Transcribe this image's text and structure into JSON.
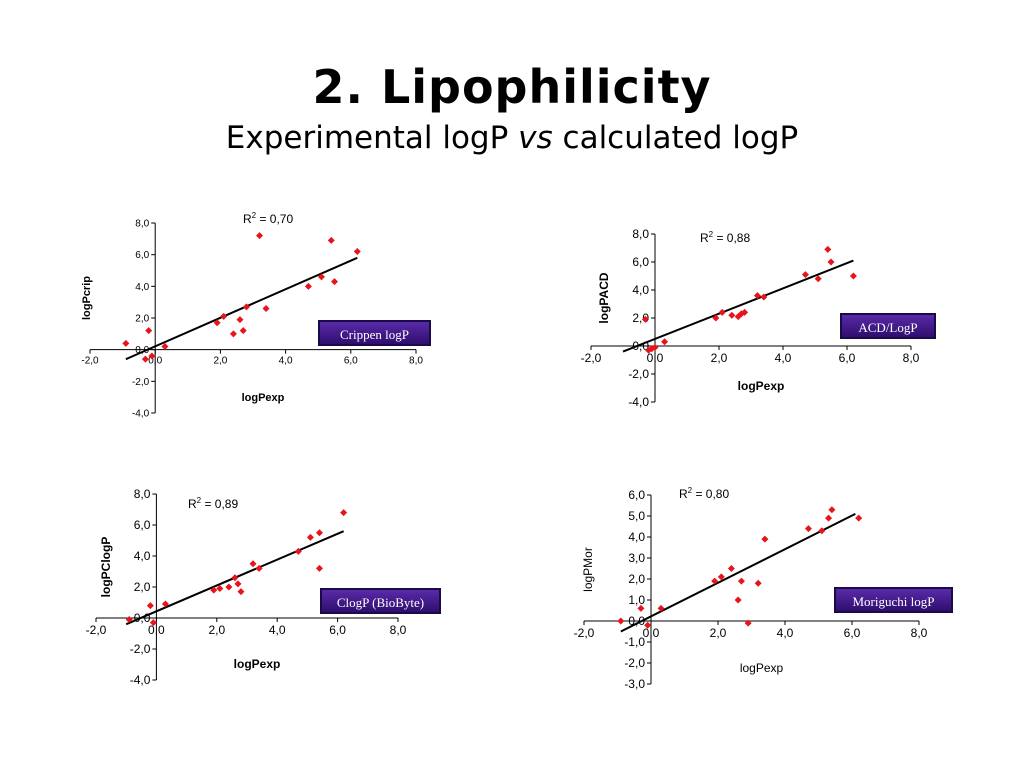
{
  "slide": {
    "title": "2. Lipophilicity",
    "subtitle_pre": "Experimental logP ",
    "subtitle_vs": "vs",
    "subtitle_post": " calculated logP"
  },
  "chart_data": [
    {
      "type": "scatter",
      "xlabel": "logPexp",
      "ylabel": "logPcrip",
      "xlim": [
        -2,
        8
      ],
      "ylim": [
        -4,
        8
      ],
      "xticks": [
        "-2,0",
        "0,0",
        "2,0",
        "4,0",
        "6,0",
        "8,0"
      ],
      "yticks": [
        "-4,0",
        "-2,0",
        "0,0",
        "2,0",
        "4,0",
        "6,0",
        "8,0"
      ],
      "r2_text": "R",
      "r2_sup": "2",
      "r2_value": " = 0,70",
      "method_label": "Crippen logP",
      "marker_color": "#e8141b",
      "trendline": [
        [
          -0.9,
          -0.6
        ],
        [
          6.2,
          5.8
        ]
      ],
      "points": [
        [
          -0.9,
          0.4
        ],
        [
          -0.3,
          -0.6
        ],
        [
          -0.2,
          1.2
        ],
        [
          -0.1,
          -0.4
        ],
        [
          0.3,
          0.2
        ],
        [
          1.9,
          1.7
        ],
        [
          2.1,
          2.1
        ],
        [
          2.4,
          1.0
        ],
        [
          2.6,
          1.9
        ],
        [
          2.7,
          1.2
        ],
        [
          2.8,
          2.7
        ],
        [
          3.2,
          7.2
        ],
        [
          3.4,
          2.6
        ],
        [
          4.7,
          4.0
        ],
        [
          5.1,
          4.6
        ],
        [
          5.4,
          6.9
        ],
        [
          5.5,
          4.3
        ],
        [
          6.2,
          6.2
        ]
      ]
    },
    {
      "type": "scatter",
      "xlabel": "logPexp",
      "ylabel": "logPACD",
      "xlim": [
        -2,
        8
      ],
      "ylim": [
        -4,
        8
      ],
      "xticks": [
        "-2,0",
        "0,0",
        "2,0",
        "4,0",
        "6,0",
        "8,0"
      ],
      "yticks": [
        "-4,0",
        "-2,0",
        "0,0",
        "2,0",
        "4,0",
        "6,0",
        "8,0"
      ],
      "r2_text": "R",
      "r2_sup": "2",
      "r2_value": " = 0,88",
      "method_label": "ACD/LogP",
      "marker_color": "#e8141b",
      "trendline": [
        [
          -1.0,
          -0.4
        ],
        [
          6.2,
          6.1
        ]
      ],
      "points": [
        [
          -0.3,
          1.9
        ],
        [
          -0.2,
          -0.3
        ],
        [
          -0.1,
          -0.2
        ],
        [
          0.0,
          -0.1
        ],
        [
          0.3,
          0.3
        ],
        [
          1.9,
          2.0
        ],
        [
          2.1,
          2.4
        ],
        [
          2.4,
          2.2
        ],
        [
          2.6,
          2.1
        ],
        [
          2.7,
          2.3
        ],
        [
          2.8,
          2.4
        ],
        [
          3.2,
          3.6
        ],
        [
          3.4,
          3.5
        ],
        [
          4.7,
          5.1
        ],
        [
          5.1,
          4.8
        ],
        [
          5.4,
          6.9
        ],
        [
          5.5,
          6.0
        ],
        [
          6.2,
          5.0
        ]
      ]
    },
    {
      "type": "scatter",
      "xlabel": "logPexp",
      "ylabel": "logPClogP",
      "xlim": [
        -2,
        8
      ],
      "ylim": [
        -4,
        8
      ],
      "xticks": [
        "-2,0",
        "0,0",
        "2,0",
        "4,0",
        "6,0",
        "8,0"
      ],
      "yticks": [
        "-4,0",
        "-2,0",
        "0,0",
        "2,0",
        "4,0",
        "6,0",
        "8,0"
      ],
      "r2_text": "R",
      "r2_sup": "2",
      "r2_value": " = 0,89",
      "method_label": "ClogP (BioByte)",
      "marker_color": "#e8141b",
      "trendline": [
        [
          -1.0,
          -0.4
        ],
        [
          6.2,
          5.6
        ]
      ],
      "points": [
        [
          -0.9,
          -0.1
        ],
        [
          -0.2,
          0.8
        ],
        [
          -0.1,
          -0.3
        ],
        [
          0.3,
          0.9
        ],
        [
          1.9,
          1.8
        ],
        [
          2.1,
          1.9
        ],
        [
          2.4,
          2.0
        ],
        [
          2.6,
          2.6
        ],
        [
          2.7,
          2.2
        ],
        [
          2.8,
          1.7
        ],
        [
          3.2,
          3.5
        ],
        [
          3.4,
          3.2
        ],
        [
          4.7,
          4.3
        ],
        [
          5.1,
          5.2
        ],
        [
          5.4,
          5.5
        ],
        [
          5.4,
          3.2
        ],
        [
          6.2,
          6.8
        ]
      ]
    },
    {
      "type": "scatter",
      "xlabel": "logPexp",
      "ylabel": "logPMor",
      "xlim": [
        -2,
        8
      ],
      "ylim": [
        -3,
        6
      ],
      "xticks": [
        "-2,0",
        "0,0",
        "2,0",
        "4,0",
        "6,0",
        "8,0"
      ],
      "yticks": [
        "-3,0",
        "-2,0",
        "-1,0",
        "0,0",
        "1,0",
        "2,0",
        "3,0",
        "4,0",
        "5,0",
        "6,0"
      ],
      "r2_text": "R",
      "r2_sup": "2",
      "r2_value": " = 0,80",
      "method_label": "Moriguchi logP",
      "marker_color": "#e8141b",
      "trendline": [
        [
          -0.9,
          -0.5
        ],
        [
          6.1,
          5.1
        ]
      ],
      "points": [
        [
          -0.9,
          0.0
        ],
        [
          -0.3,
          0.6
        ],
        [
          -0.1,
          -0.2
        ],
        [
          0.3,
          0.6
        ],
        [
          1.9,
          1.9
        ],
        [
          2.1,
          2.1
        ],
        [
          2.4,
          2.5
        ],
        [
          2.6,
          1.0
        ],
        [
          2.7,
          1.9
        ],
        [
          2.9,
          -0.1
        ],
        [
          3.2,
          1.8
        ],
        [
          3.4,
          3.9
        ],
        [
          4.7,
          4.4
        ],
        [
          5.1,
          4.3
        ],
        [
          5.3,
          4.9
        ],
        [
          5.4,
          5.3
        ],
        [
          6.2,
          4.9
        ]
      ]
    }
  ]
}
